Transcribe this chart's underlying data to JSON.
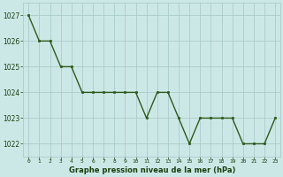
{
  "x": [
    0,
    1,
    2,
    3,
    4,
    5,
    6,
    7,
    8,
    9,
    10,
    11,
    12,
    13,
    14,
    15,
    16,
    17,
    18,
    19,
    20,
    21,
    22,
    23
  ],
  "y": [
    1027,
    1026,
    1026,
    1025,
    1025,
    1024,
    1024,
    1024,
    1024,
    1024,
    1024,
    1023,
    1024,
    1024,
    1023,
    1022,
    1023,
    1023,
    1023,
    1023,
    1022,
    1022,
    1022,
    1023
  ],
  "ylim": [
    1021.5,
    1027.5
  ],
  "yticks": [
    1022,
    1023,
    1024,
    1025,
    1026,
    1027
  ],
  "xticks": [
    0,
    1,
    2,
    3,
    4,
    5,
    6,
    7,
    8,
    9,
    10,
    11,
    12,
    13,
    14,
    15,
    16,
    17,
    18,
    19,
    20,
    21,
    22,
    23
  ],
  "line_color": "#2d5a1b",
  "marker_color": "#2d5a1b",
  "bg_color": "#cce8e6",
  "grid_color": "#aacccc",
  "xlabel": "Graphe pression niveau de la mer (hPa)",
  "tick_label_color": "#1a4010",
  "line_width": 1.0,
  "marker_size": 2.0
}
